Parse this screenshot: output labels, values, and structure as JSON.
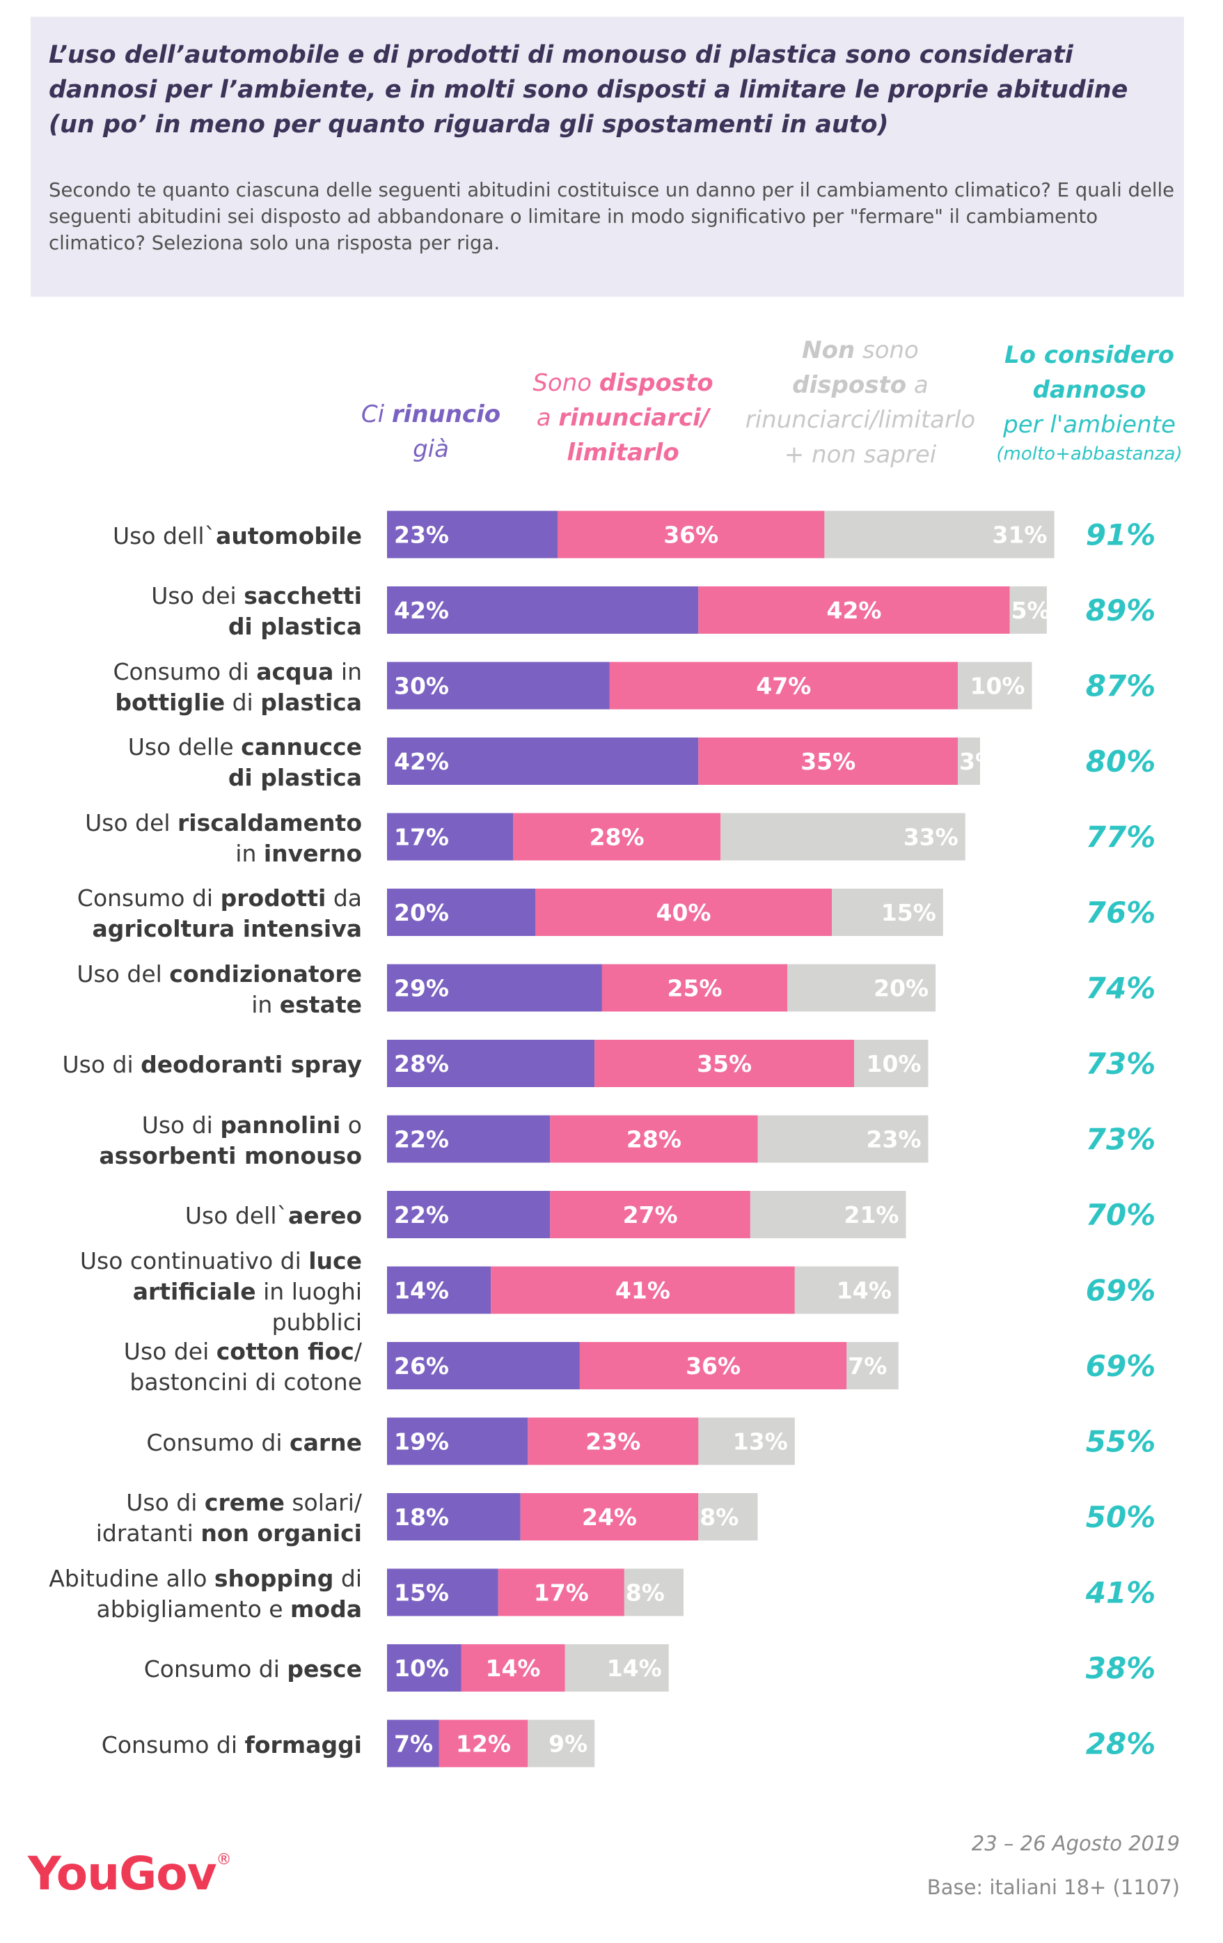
{
  "header": {
    "title": "L’uso dell’automobile e di prodotti di monouso di plastica sono considerati dannosi per l’ambiente, e in molti sono disposti a limitare le proprie abitudine (un po’ in meno per quanto riguarda gli spostamenti in auto)",
    "subtitle": "Secondo te quanto ciascuna delle seguenti abitudini costituisce un danno per il cambiamento climatico? E quali delle seguenti abitudini sei disposto ad abbandonare o limitare in modo significativo per \"fermare\" il cambiamento climatico? Seleziona solo una risposta per riga."
  },
  "columns": {
    "already": {
      "l1_pre": "Ci ",
      "l1_bold": "rinuncio",
      "l2": "già"
    },
    "willing": {
      "l1_pre": "Sono ",
      "l1_bold": "disposto",
      "l2_pre": "a ",
      "l2_bold": "rinunciarci/",
      "l3_bold": "limitarlo"
    },
    "notwilling": {
      "l1_bold": "Non",
      "l1_post": " sono",
      "l2_bold": "disposto",
      "l2_post": " a",
      "l3": "rinunciarci/limitarlo",
      "l4": "+ non saprei"
    },
    "harmful": {
      "l1": "Lo considero",
      "l2": "dannoso",
      "l3": "per l'ambiente",
      "l4": "(molto+abbastanza)"
    }
  },
  "colors": {
    "already": "#7b62c2",
    "willing": "#f26c9c",
    "notwilling": "#d4d4d2",
    "harmful": "#2ec4c4",
    "brand": "#ef3a56"
  },
  "chart_data": {
    "type": "bar",
    "stacked": true,
    "orientation": "horizontal",
    "categories": [
      "Uso dell`automobile",
      "Uso dei sacchetti di plastica",
      "Consumo di acqua in bottiglie di plastica",
      "Uso delle cannucce di plastica",
      "Uso del riscaldamento in inverno",
      "Consumo di prodotti da agricoltura intensiva",
      "Uso del condizionatore in estate",
      "Uso di deodoranti spray",
      "Uso di pannolini o assorbenti monouso",
      "Uso dell`aereo",
      "Uso continuativo di luce artificiale in luoghi pubblici",
      "Uso dei cotton fioc/ bastoncini di cotone",
      "Consumo di carne",
      "Uso di creme solari/ idratanti non organici",
      "Abitudine allo shopping di abbigliamento e moda",
      "Consumo di pesce",
      "Consumo di formaggi"
    ],
    "series": [
      {
        "name": "Ci rinuncio già",
        "values": [
          23,
          42,
          30,
          42,
          17,
          20,
          29,
          28,
          22,
          22,
          14,
          26,
          19,
          18,
          15,
          10,
          7
        ]
      },
      {
        "name": "Sono disposto a rinunciarci/ limitarlo",
        "values": [
          36,
          42,
          47,
          35,
          28,
          40,
          25,
          35,
          28,
          27,
          41,
          36,
          23,
          24,
          17,
          14,
          12
        ]
      },
      {
        "name": "Non sono disposto a rinunciarci/limitarlo + non saprei",
        "values": [
          31,
          5,
          10,
          3,
          33,
          15,
          20,
          10,
          23,
          21,
          14,
          7,
          13,
          8,
          8,
          14,
          9
        ]
      }
    ],
    "harmful": {
      "name": "Lo considero dannoso per l'ambiente (molto+abbastanza)",
      "values": [
        91,
        89,
        87,
        80,
        77,
        76,
        74,
        73,
        73,
        70,
        69,
        69,
        55,
        50,
        41,
        38,
        28
      ]
    },
    "value_suffix": "%"
  },
  "rows": [
    {
      "lines": [
        [
          {
            "t": "Uso dell`"
          },
          {
            "t": "automobile",
            "b": true
          }
        ]
      ]
    },
    {
      "lines": [
        [
          {
            "t": "Uso dei "
          },
          {
            "t": "sacchetti",
            "b": true
          }
        ],
        [
          {
            "t": "di plastica",
            "b": true
          }
        ]
      ]
    },
    {
      "lines": [
        [
          {
            "t": "Consumo di "
          },
          {
            "t": "acqua",
            "b": true
          },
          {
            "t": " in"
          }
        ],
        [
          {
            "t": "bottiglie",
            "b": true
          },
          {
            "t": " di "
          },
          {
            "t": "plastica",
            "b": true
          }
        ]
      ]
    },
    {
      "lines": [
        [
          {
            "t": "Uso delle "
          },
          {
            "t": "cannucce",
            "b": true
          }
        ],
        [
          {
            "t": "di plastica",
            "b": true
          }
        ]
      ]
    },
    {
      "lines": [
        [
          {
            "t": "Uso del "
          },
          {
            "t": "riscaldamento",
            "b": true
          }
        ],
        [
          {
            "t": "in "
          },
          {
            "t": "inverno",
            "b": true
          }
        ]
      ]
    },
    {
      "lines": [
        [
          {
            "t": "Consumo di "
          },
          {
            "t": "prodotti",
            "b": true
          },
          {
            "t": " da"
          }
        ],
        [
          {
            "t": "agricoltura intensiva",
            "b": true
          }
        ]
      ]
    },
    {
      "lines": [
        [
          {
            "t": "Uso del "
          },
          {
            "t": "condizionatore",
            "b": true
          }
        ],
        [
          {
            "t": "in "
          },
          {
            "t": "estate",
            "b": true
          }
        ]
      ]
    },
    {
      "lines": [
        [
          {
            "t": "Uso di "
          },
          {
            "t": "deodoranti spray",
            "b": true
          }
        ]
      ]
    },
    {
      "lines": [
        [
          {
            "t": "Uso di "
          },
          {
            "t": "pannolini",
            "b": true
          },
          {
            "t": " o"
          }
        ],
        [
          {
            "t": "assorbenti monouso",
            "b": true
          }
        ]
      ]
    },
    {
      "lines": [
        [
          {
            "t": "Uso dell`"
          },
          {
            "t": "aereo",
            "b": true
          }
        ]
      ]
    },
    {
      "lines": [
        [
          {
            "t": "Uso continuativo di "
          },
          {
            "t": "luce",
            "b": true
          }
        ],
        [
          {
            "t": "artificiale",
            "b": true
          },
          {
            "t": " in luoghi"
          }
        ],
        [
          {
            "t": "pubblici"
          }
        ]
      ]
    },
    {
      "lines": [
        [
          {
            "t": "Uso dei "
          },
          {
            "t": "cotton fioc",
            "b": true
          },
          {
            "t": "/"
          }
        ],
        [
          {
            "t": "bastoncini di cotone"
          }
        ]
      ]
    },
    {
      "lines": [
        [
          {
            "t": "Consumo di "
          },
          {
            "t": "carne",
            "b": true
          }
        ]
      ]
    },
    {
      "lines": [
        [
          {
            "t": "Uso di "
          },
          {
            "t": "creme",
            "b": true
          },
          {
            "t": " solari/"
          }
        ],
        [
          {
            "t": "idratanti "
          },
          {
            "t": "non organici",
            "b": true
          }
        ]
      ]
    },
    {
      "lines": [
        [
          {
            "t": "Abitudine allo "
          },
          {
            "t": "shopping",
            "b": true
          },
          {
            "t": " di"
          }
        ],
        [
          {
            "t": "abbigliamento e "
          },
          {
            "t": "moda",
            "b": true
          }
        ]
      ]
    },
    {
      "lines": [
        [
          {
            "t": "Consumo di "
          },
          {
            "t": "pesce",
            "b": true
          }
        ]
      ]
    },
    {
      "lines": [
        [
          {
            "t": "Consumo di "
          },
          {
            "t": "formaggi",
            "b": true
          }
        ]
      ]
    }
  ],
  "footer": {
    "date": "23 – 26 Agosto 2019",
    "base": "Base: italiani 18+ (1107)",
    "logo": "YouGov",
    "logo_mark": "®"
  }
}
